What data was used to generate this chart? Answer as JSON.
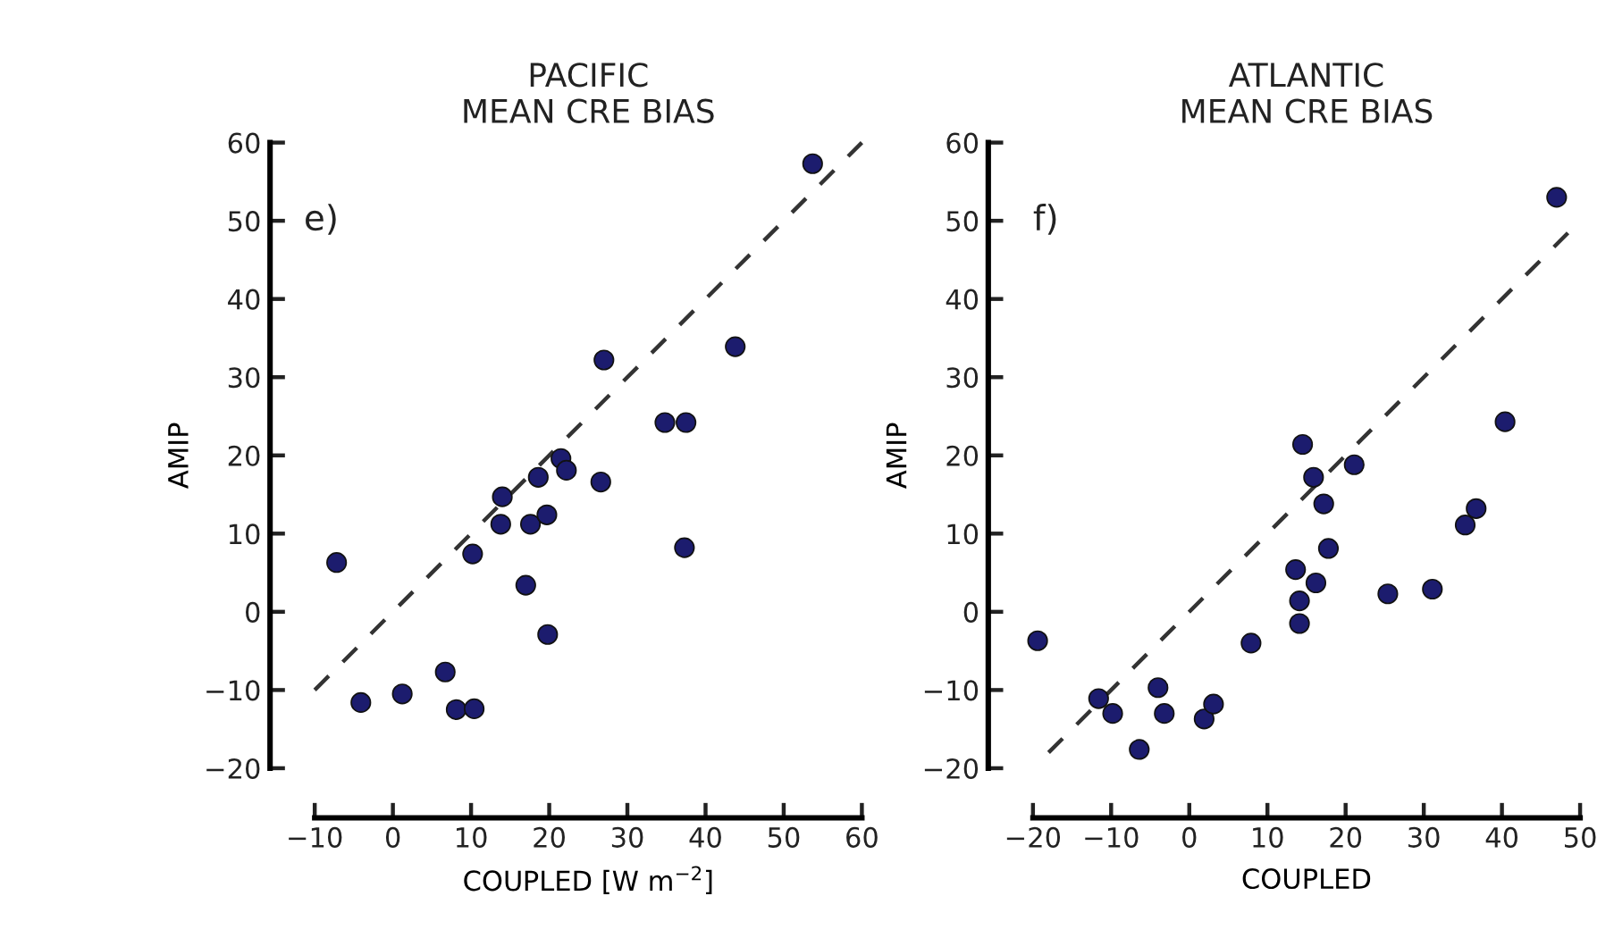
{
  "chart_data": [
    {
      "type": "scatter",
      "title": "PACIFIC\nMEAN CRE BIAS",
      "xlabel": "COUPLED [W m$^{−2}$]",
      "ylabel": "AMIP",
      "annotations": [
        "e)"
      ],
      "xlim": [
        -10,
        60
      ],
      "xticks": [
        -10,
        0,
        10,
        20,
        30,
        40,
        50,
        60
      ],
      "ylim": [
        -20,
        60
      ],
      "yticks": [
        -20,
        -10,
        0,
        10,
        20,
        30,
        40,
        50,
        60
      ],
      "grid": false,
      "legend": false,
      "series": [
        {
          "type": "scatter",
          "color": "#1c1c6e",
          "marker": "circle",
          "x": [
            -7.2,
            -4.1,
            1.2,
            6.7,
            8.1,
            10.4,
            10.2,
            14.0,
            13.8,
            17.0,
            17.6,
            18.6,
            19.7,
            19.8,
            21.5,
            22.2,
            26.6,
            27.0,
            34.8,
            37.5,
            37.3,
            43.8,
            53.7
          ],
          "values": [
            6.3,
            -11.6,
            -10.5,
            -7.7,
            -12.5,
            -12.4,
            7.4,
            14.7,
            11.2,
            3.4,
            11.2,
            17.2,
            12.4,
            -2.9,
            19.6,
            18.1,
            16.6,
            32.2,
            24.2,
            24.2,
            8.2,
            33.9,
            57.3
          ]
        },
        {
          "type": "line",
          "color": "#333333",
          "line_style": "dashed",
          "x": [
            -10,
            60
          ],
          "values": [
            -10,
            60
          ]
        }
      ]
    },
    {
      "type": "scatter",
      "title": "ATLANTIC\nMEAN CRE BIAS",
      "xlabel": "COUPLED",
      "ylabel": "AMIP",
      "annotations": [
        "f)"
      ],
      "xlim": [
        -20,
        50
      ],
      "xticks": [
        -20,
        -10,
        0,
        10,
        20,
        30,
        40,
        50
      ],
      "ylim": [
        -20,
        60
      ],
      "yticks": [
        -20,
        -10,
        0,
        10,
        20,
        30,
        40,
        50,
        60
      ],
      "grid": false,
      "legend": false,
      "series": [
        {
          "type": "scatter",
          "color": "#1c1c6e",
          "marker": "circle",
          "x": [
            -19.4,
            -11.6,
            -9.8,
            -6.4,
            -4.0,
            -3.2,
            1.9,
            3.1,
            7.9,
            13.6,
            14.1,
            14.1,
            16.2,
            14.5,
            15.9,
            17.2,
            17.8,
            21.1,
            25.4,
            31.1,
            35.3,
            36.7,
            40.4,
            47.0
          ],
          "values": [
            -3.7,
            -11.1,
            -13.0,
            -17.6,
            -9.7,
            -13.0,
            -13.7,
            -11.8,
            -4.0,
            5.4,
            1.4,
            -1.5,
            3.7,
            21.4,
            17.2,
            13.8,
            8.1,
            18.8,
            2.3,
            2.9,
            11.1,
            13.2,
            24.3,
            53.0
          ]
        },
        {
          "type": "line",
          "color": "#333333",
          "line_style": "dashed",
          "x": [
            -18,
            50
          ],
          "values": [
            -18,
            50
          ]
        }
      ]
    }
  ]
}
